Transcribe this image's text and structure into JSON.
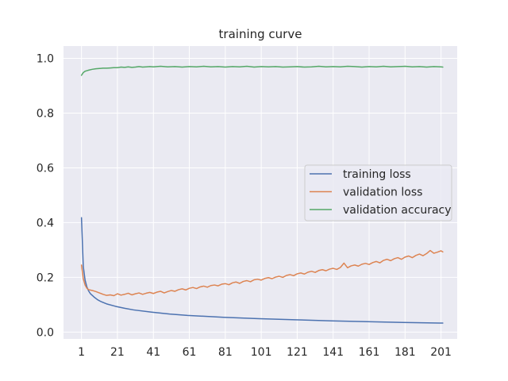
{
  "chart_data": {
    "type": "line",
    "title": "training curve",
    "xlabel": "",
    "ylabel": "",
    "xlim": [
      -9,
      210
    ],
    "ylim": [
      -0.025,
      1.045
    ],
    "x_ticks": [
      1,
      21,
      41,
      61,
      81,
      101,
      121,
      141,
      161,
      181,
      201
    ],
    "y_ticks": [
      0.0,
      0.2,
      0.4,
      0.6,
      0.8,
      1.0
    ],
    "y_tick_labels": [
      "0.0",
      "0.2",
      "0.4",
      "0.6",
      "0.8",
      "1.0"
    ],
    "grid": true,
    "legend_position": "center-right",
    "series": [
      {
        "name": "training loss",
        "color": "#4c72b0",
        "x": [
          1,
          2,
          3,
          4,
          5,
          6,
          8,
          10,
          12,
          15,
          20,
          25,
          30,
          40,
          50,
          60,
          80,
          100,
          120,
          140,
          160,
          180,
          200,
          202
        ],
        "values": [
          0.418,
          0.24,
          0.19,
          0.165,
          0.15,
          0.14,
          0.128,
          0.118,
          0.111,
          0.103,
          0.094,
          0.087,
          0.081,
          0.073,
          0.066,
          0.061,
          0.054,
          0.049,
          0.045,
          0.041,
          0.038,
          0.035,
          0.033,
          0.033
        ]
      },
      {
        "name": "validation loss",
        "color": "#dd8452",
        "x": [
          1,
          2,
          3,
          4,
          5,
          7,
          9,
          11,
          13,
          15,
          17,
          19,
          21,
          23,
          25,
          27,
          29,
          31,
          33,
          35,
          37,
          39,
          41,
          43,
          45,
          47,
          49,
          51,
          53,
          55,
          57,
          59,
          61,
          63,
          65,
          67,
          69,
          71,
          73,
          75,
          77,
          79,
          81,
          83,
          85,
          87,
          89,
          91,
          93,
          95,
          97,
          99,
          101,
          103,
          105,
          107,
          109,
          111,
          113,
          115,
          117,
          119,
          121,
          123,
          125,
          127,
          129,
          131,
          133,
          135,
          137,
          139,
          141,
          143,
          145,
          147,
          149,
          151,
          153,
          155,
          157,
          159,
          161,
          163,
          165,
          167,
          169,
          171,
          173,
          175,
          177,
          179,
          181,
          183,
          185,
          187,
          189,
          191,
          193,
          195,
          197,
          199,
          201,
          202
        ],
        "values": [
          0.245,
          0.195,
          0.172,
          0.16,
          0.155,
          0.152,
          0.148,
          0.143,
          0.138,
          0.134,
          0.136,
          0.133,
          0.14,
          0.135,
          0.138,
          0.142,
          0.136,
          0.14,
          0.143,
          0.138,
          0.142,
          0.145,
          0.141,
          0.146,
          0.149,
          0.143,
          0.148,
          0.152,
          0.149,
          0.155,
          0.158,
          0.154,
          0.16,
          0.163,
          0.159,
          0.165,
          0.168,
          0.164,
          0.17,
          0.172,
          0.169,
          0.175,
          0.177,
          0.173,
          0.18,
          0.183,
          0.178,
          0.185,
          0.188,
          0.184,
          0.191,
          0.193,
          0.19,
          0.196,
          0.199,
          0.195,
          0.201,
          0.204,
          0.2,
          0.207,
          0.21,
          0.206,
          0.213,
          0.216,
          0.212,
          0.219,
          0.222,
          0.218,
          0.225,
          0.228,
          0.224,
          0.23,
          0.233,
          0.229,
          0.236,
          0.252,
          0.235,
          0.242,
          0.245,
          0.241,
          0.248,
          0.251,
          0.247,
          0.254,
          0.258,
          0.253,
          0.262,
          0.266,
          0.261,
          0.268,
          0.272,
          0.266,
          0.274,
          0.278,
          0.272,
          0.28,
          0.285,
          0.279,
          0.287,
          0.298,
          0.288,
          0.292,
          0.297,
          0.293
        ]
      },
      {
        "name": "validation accuracy",
        "color": "#55a868",
        "x": [
          1,
          2,
          3,
          4,
          5,
          7,
          9,
          11,
          13,
          15,
          17,
          19,
          21,
          23,
          25,
          27,
          29,
          31,
          33,
          35,
          37,
          39,
          41,
          45,
          49,
          53,
          57,
          61,
          65,
          69,
          73,
          77,
          81,
          85,
          89,
          93,
          97,
          101,
          105,
          109,
          113,
          117,
          121,
          125,
          129,
          133,
          137,
          141,
          145,
          149,
          153,
          157,
          161,
          165,
          169,
          173,
          177,
          181,
          185,
          189,
          193,
          197,
          201,
          202
        ],
        "values": [
          0.938,
          0.948,
          0.953,
          0.955,
          0.957,
          0.96,
          0.962,
          0.963,
          0.964,
          0.964,
          0.965,
          0.966,
          0.966,
          0.968,
          0.967,
          0.969,
          0.967,
          0.968,
          0.97,
          0.968,
          0.969,
          0.97,
          0.969,
          0.971,
          0.969,
          0.97,
          0.968,
          0.97,
          0.969,
          0.971,
          0.969,
          0.97,
          0.968,
          0.97,
          0.969,
          0.971,
          0.968,
          0.97,
          0.969,
          0.97,
          0.968,
          0.969,
          0.97,
          0.968,
          0.969,
          0.971,
          0.969,
          0.97,
          0.969,
          0.971,
          0.97,
          0.968,
          0.97,
          0.969,
          0.971,
          0.969,
          0.97,
          0.971,
          0.969,
          0.97,
          0.968,
          0.97,
          0.969,
          0.968
        ]
      }
    ]
  }
}
